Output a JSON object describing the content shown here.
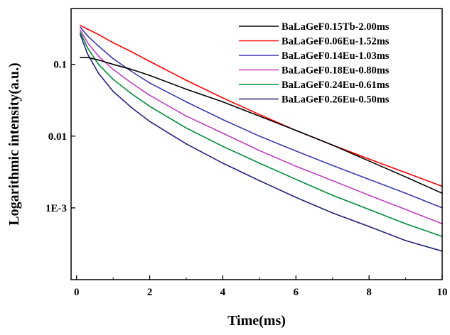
{
  "chart_data": {
    "type": "line",
    "title": "",
    "xlabel": "Time(ms)",
    "ylabel": "Logarithmic intensity(a.u.)",
    "xlim": [
      -0.15,
      10
    ],
    "ylim": [
      0.0001,
      0.6
    ],
    "yscale": "log",
    "grid": false,
    "legend_position": "top-right",
    "x_ticks": [
      {
        "value": 0,
        "label": "0"
      },
      {
        "value": 2,
        "label": "2"
      },
      {
        "value": 4,
        "label": "4"
      },
      {
        "value": 6,
        "label": "6"
      },
      {
        "value": 8,
        "label": "8"
      },
      {
        "value": 10,
        "label": "10"
      }
    ],
    "y_ticks": [
      {
        "value": 0.1,
        "label": "0.1"
      },
      {
        "value": 0.01,
        "label": "0.01"
      },
      {
        "value": 0.001,
        "label": "1E-3"
      }
    ],
    "series": [
      {
        "name": "BaLaGeF0.15Tb-2.00ms",
        "color": "#000000",
        "x": [
          0.1,
          0.3,
          0.6,
          1.0,
          1.5,
          2.0,
          3.0,
          4.0,
          5.0,
          6.0,
          7.0,
          8.0,
          9.0,
          10.0
        ],
        "y": [
          0.125,
          0.125,
          0.115,
          0.1,
          0.085,
          0.07,
          0.045,
          0.03,
          0.019,
          0.012,
          0.0075,
          0.0045,
          0.0027,
          0.0016
        ]
      },
      {
        "name": "BaLaGeF0.06Eu-1.52ms",
        "color": "#ff0000",
        "x": [
          0.1,
          0.3,
          0.6,
          1.0,
          1.5,
          2.0,
          3.0,
          4.0,
          5.0,
          6.0,
          7.0,
          8.0,
          9.0,
          10.0
        ],
        "y": [
          0.35,
          0.31,
          0.26,
          0.2,
          0.15,
          0.11,
          0.06,
          0.034,
          0.02,
          0.012,
          0.0075,
          0.0048,
          0.0031,
          0.002
        ]
      },
      {
        "name": "BaLaGeF0.14Eu-1.03ms",
        "color": "#3b3bb3",
        "x": [
          0.1,
          0.3,
          0.6,
          1.0,
          1.5,
          2.0,
          3.0,
          4.0,
          5.0,
          6.0,
          7.0,
          8.0,
          9.0,
          10.0
        ],
        "y": [
          0.33,
          0.25,
          0.18,
          0.12,
          0.08,
          0.055,
          0.03,
          0.017,
          0.01,
          0.0062,
          0.0039,
          0.0025,
          0.0016,
          0.001
        ]
      },
      {
        "name": "BaLaGeF0.18Eu-0.80ms",
        "color": "#c040c0",
        "x": [
          0.1,
          0.3,
          0.6,
          1.0,
          1.5,
          2.0,
          3.0,
          4.0,
          5.0,
          6.0,
          7.0,
          8.0,
          9.0,
          10.0
        ],
        "y": [
          0.3,
          0.2,
          0.13,
          0.085,
          0.055,
          0.037,
          0.019,
          0.011,
          0.0063,
          0.0038,
          0.0024,
          0.0015,
          0.00095,
          0.0006
        ]
      },
      {
        "name": "BaLaGeF0.24Eu-0.61ms",
        "color": "#008c3a",
        "x": [
          0.1,
          0.3,
          0.6,
          1.0,
          1.5,
          2.0,
          3.0,
          4.0,
          5.0,
          6.0,
          7.0,
          8.0,
          9.0,
          10.0
        ],
        "y": [
          0.28,
          0.17,
          0.1,
          0.062,
          0.039,
          0.026,
          0.013,
          0.0072,
          0.0042,
          0.0025,
          0.0015,
          0.00095,
          0.0006,
          0.0004
        ]
      },
      {
        "name": "BaLaGeF0.26Eu-0.50ms",
        "color": "#22227a",
        "x": [
          0.1,
          0.3,
          0.6,
          1.0,
          1.5,
          2.0,
          3.0,
          4.0,
          5.0,
          6.0,
          7.0,
          8.0,
          9.0,
          10.0
        ],
        "y": [
          0.26,
          0.14,
          0.075,
          0.042,
          0.025,
          0.016,
          0.0078,
          0.0042,
          0.0024,
          0.0014,
          0.00085,
          0.00055,
          0.00035,
          0.00025
        ]
      }
    ]
  }
}
